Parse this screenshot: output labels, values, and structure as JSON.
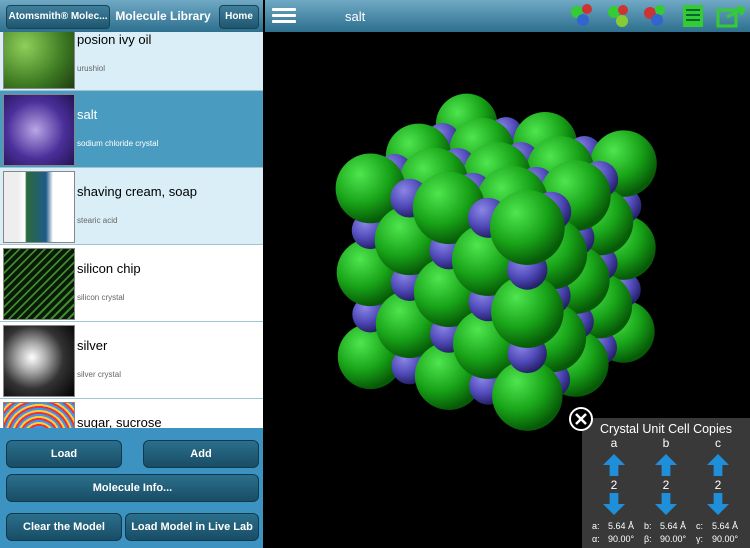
{
  "header": {
    "back": "Atomsmith® Molec...",
    "title": "Molecule Library",
    "home": "Home"
  },
  "molecules": [
    {
      "name": "posion ivy oil",
      "subtitle": "urushiol"
    },
    {
      "name": "salt",
      "subtitle": "sodium chloride crystal"
    },
    {
      "name": "shaving cream, soap",
      "subtitle": "stearic acid"
    },
    {
      "name": "silicon chip",
      "subtitle": "silicon crystal"
    },
    {
      "name": "silver",
      "subtitle": "silver crystal"
    },
    {
      "name": "sugar, sucrose"
    }
  ],
  "buttons": [
    "Load",
    "Add",
    "Molecule Info...",
    "Clear the Model",
    "Load Model in Live Lab"
  ],
  "viewer": {
    "title": "salt"
  },
  "crystal_panel": {
    "title": "Crystal Unit Cell Copies",
    "axes": [
      {
        "label": "a",
        "copies": 2
      },
      {
        "label": "b",
        "copies": 2
      },
      {
        "label": "c",
        "copies": 2
      }
    ],
    "lengths": [
      {
        "label": "a:",
        "value": "5.64 Å"
      },
      {
        "label": "b:",
        "value": "5.64 Å"
      },
      {
        "label": "c:",
        "value": "5.64 Å"
      }
    ],
    "angles": [
      {
        "label": "α:",
        "value": "90.00°"
      },
      {
        "label": "β:",
        "value": "90.00°"
      },
      {
        "label": "γ:",
        "value": "90.00°"
      }
    ]
  }
}
